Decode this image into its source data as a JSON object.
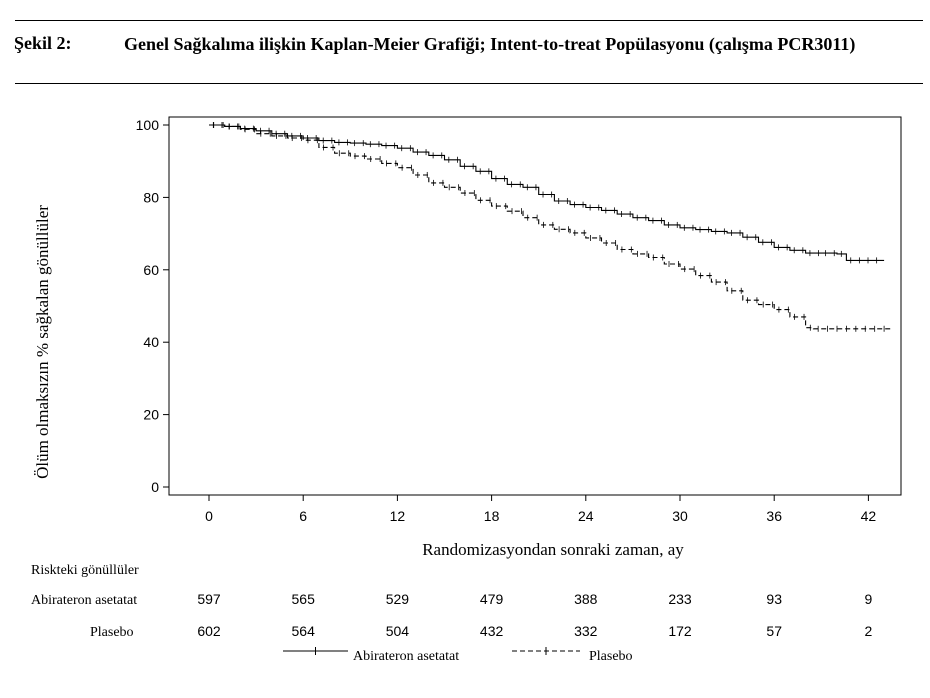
{
  "header": {
    "figure_label": "Şekil 2:",
    "figure_title": "Genel Sağkalıma ilişkin Kaplan-Meier Grafiği; Intent-to-treat Popülasyonu (çalışma PCR3011)"
  },
  "chart_data": {
    "type": "line",
    "title": "",
    "xlabel": "Randomizasyondan sonraki zaman, ay",
    "ylabel": "Ölüm olmaksızın % sağkalan gönüllüler",
    "xlim": [
      -4,
      44.5
    ],
    "ylim": [
      0,
      100
    ],
    "xticks": [
      0,
      6,
      12,
      18,
      24,
      30,
      36,
      42
    ],
    "yticks": [
      0,
      20,
      40,
      60,
      80,
      100
    ],
    "grid": false,
    "legend_position": "bottom",
    "series": [
      {
        "name": "Abirateron asetatat",
        "line_style": "solid",
        "censor_marker": "+",
        "points": [
          [
            0,
            100
          ],
          [
            1,
            99.6
          ],
          [
            2,
            99
          ],
          [
            3,
            98.4
          ],
          [
            4,
            97.6
          ],
          [
            5,
            97
          ],
          [
            6,
            96.4
          ],
          [
            7,
            95.7
          ],
          [
            8,
            95.2
          ],
          [
            9,
            95
          ],
          [
            10,
            94.7
          ],
          [
            11,
            94.3
          ],
          [
            12,
            93.6
          ],
          [
            13,
            92.5
          ],
          [
            14,
            91.6
          ],
          [
            15,
            90.4
          ],
          [
            16,
            88.6
          ],
          [
            17,
            87.2
          ],
          [
            18,
            85.2
          ],
          [
            19,
            83.6
          ],
          [
            20,
            82.8
          ],
          [
            21,
            80.8
          ],
          [
            22,
            79
          ],
          [
            23,
            78
          ],
          [
            24,
            77.2
          ],
          [
            25,
            76.4
          ],
          [
            26,
            75.4
          ],
          [
            27,
            74.4
          ],
          [
            28,
            73.6
          ],
          [
            29,
            72.4
          ],
          [
            30,
            71.6
          ],
          [
            31,
            71.1
          ],
          [
            32,
            70.6
          ],
          [
            33,
            70.2
          ],
          [
            34,
            69
          ],
          [
            35,
            67.6
          ],
          [
            36,
            66.2
          ],
          [
            37,
            65.4
          ],
          [
            38,
            64.6
          ],
          [
            39,
            64.6
          ],
          [
            40,
            64.4
          ],
          [
            40.6,
            62.6
          ],
          [
            43,
            62.6
          ]
        ]
      },
      {
        "name": "Plasebo",
        "line_style": "dashed",
        "censor_marker": "+",
        "points": [
          [
            0,
            100
          ],
          [
            1,
            99.6
          ],
          [
            2,
            98.8
          ],
          [
            3,
            97.6
          ],
          [
            4,
            97
          ],
          [
            5,
            96.4
          ],
          [
            6,
            95.8
          ],
          [
            7,
            93.8
          ],
          [
            8,
            92.2
          ],
          [
            9,
            91.4
          ],
          [
            10,
            90.6
          ],
          [
            11,
            89.4
          ],
          [
            12,
            88.2
          ],
          [
            13,
            86.2
          ],
          [
            14,
            84
          ],
          [
            15,
            82.8
          ],
          [
            16,
            81.2
          ],
          [
            17,
            79.2
          ],
          [
            18,
            77.6
          ],
          [
            19,
            76.2
          ],
          [
            20,
            74.4
          ],
          [
            21,
            72.4
          ],
          [
            22,
            71.2
          ],
          [
            23,
            70.2
          ],
          [
            24,
            68.8
          ],
          [
            25,
            67.4
          ],
          [
            26,
            65.6
          ],
          [
            27,
            64.4
          ],
          [
            28,
            63.4
          ],
          [
            29,
            61.6
          ],
          [
            30,
            60.2
          ],
          [
            31,
            58.4
          ],
          [
            32,
            56.6
          ],
          [
            33,
            54.2
          ],
          [
            34,
            51.6
          ],
          [
            35,
            50.4
          ],
          [
            36,
            49
          ],
          [
            37,
            47
          ],
          [
            38,
            44
          ],
          [
            38.5,
            43.7
          ],
          [
            43.5,
            43.7
          ]
        ]
      }
    ],
    "risk_table": {
      "header": "Riskteki gönüllüler",
      "rows": [
        {
          "label": "Abirateron asetatat",
          "values": [
            "597",
            "565",
            "529",
            "479",
            "388",
            "233",
            "93",
            "9"
          ]
        },
        {
          "label": "Plasebo",
          "values": [
            "602",
            "564",
            "504",
            "432",
            "332",
            "172",
            "57",
            "2"
          ]
        }
      ]
    }
  }
}
